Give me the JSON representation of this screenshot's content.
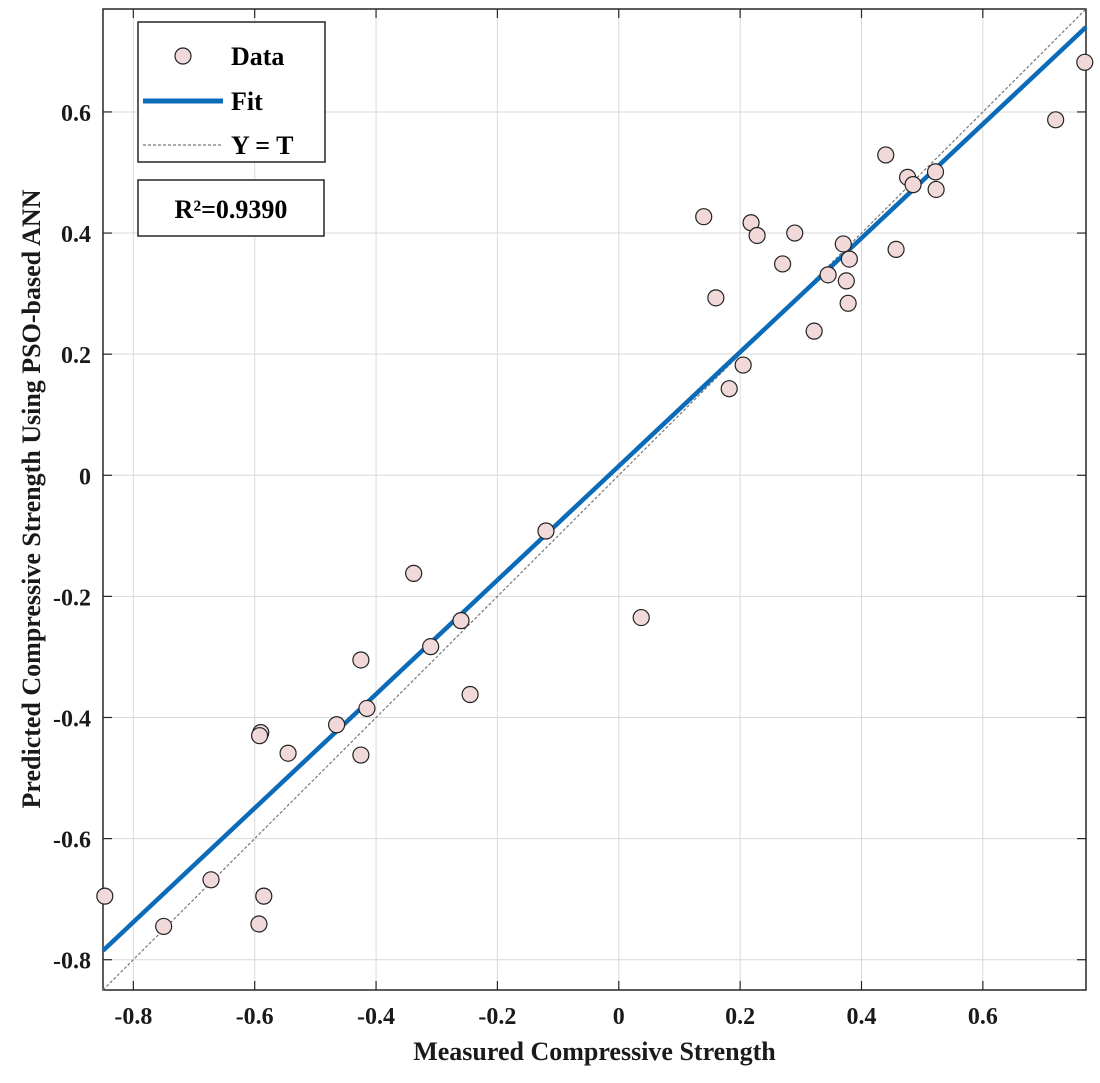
{
  "chart_data": {
    "type": "scatter",
    "title": "",
    "xlabel": "Measured Compressive Strength",
    "ylabel": "Predicted Compressive Strength Using PSO-based ANN",
    "xlim": [
      -0.85,
      0.77
    ],
    "ylim": [
      -0.85,
      0.77
    ],
    "xticks": [
      -0.8,
      -0.6,
      -0.4,
      -0.2,
      0,
      0.2,
      0.4,
      0.6
    ],
    "yticks": [
      -0.8,
      -0.6,
      -0.4,
      -0.2,
      0,
      0.2,
      0.4,
      0.6
    ],
    "xtick_labels": [
      "-0.8",
      "-0.6",
      "-0.4",
      "-0.2",
      "0",
      "0.2",
      "0.4",
      "0.6"
    ],
    "ytick_labels": [
      "-0.8",
      "-0.6",
      "-0.4",
      "-0.2",
      "0",
      "0.2",
      "0.4",
      "0.6"
    ],
    "grid": true,
    "legend": {
      "position": "top-left",
      "entries": [
        "Data",
        "Fit",
        "Y = T"
      ]
    },
    "annotation": "R²=0.9390",
    "series": [
      {
        "name": "Data",
        "kind": "scatter",
        "marker_color": "#f2d9d9",
        "points": [
          {
            "x": -0.847,
            "y": -0.695
          },
          {
            "x": -0.75,
            "y": -0.745
          },
          {
            "x": -0.672,
            "y": -0.668
          },
          {
            "x": -0.593,
            "y": -0.741
          },
          {
            "x": -0.585,
            "y": -0.695
          },
          {
            "x": -0.59,
            "y": -0.425
          },
          {
            "x": -0.592,
            "y": -0.43
          },
          {
            "x": -0.545,
            "y": -0.459
          },
          {
            "x": -0.465,
            "y": -0.412
          },
          {
            "x": -0.425,
            "y": -0.305
          },
          {
            "x": -0.425,
            "y": -0.462
          },
          {
            "x": -0.415,
            "y": -0.385
          },
          {
            "x": -0.338,
            "y": -0.162
          },
          {
            "x": -0.31,
            "y": -0.283
          },
          {
            "x": -0.26,
            "y": -0.24
          },
          {
            "x": -0.245,
            "y": -0.362
          },
          {
            "x": -0.12,
            "y": -0.092
          },
          {
            "x": 0.037,
            "y": -0.235
          },
          {
            "x": 0.14,
            "y": 0.427
          },
          {
            "x": 0.16,
            "y": 0.293
          },
          {
            "x": 0.182,
            "y": 0.143
          },
          {
            "x": 0.205,
            "y": 0.182
          },
          {
            "x": 0.218,
            "y": 0.417
          },
          {
            "x": 0.228,
            "y": 0.396
          },
          {
            "x": 0.27,
            "y": 0.349
          },
          {
            "x": 0.29,
            "y": 0.4
          },
          {
            "x": 0.322,
            "y": 0.238
          },
          {
            "x": 0.345,
            "y": 0.331
          },
          {
            "x": 0.37,
            "y": 0.382
          },
          {
            "x": 0.375,
            "y": 0.321
          },
          {
            "x": 0.378,
            "y": 0.284
          },
          {
            "x": 0.38,
            "y": 0.357
          },
          {
            "x": 0.44,
            "y": 0.529
          },
          {
            "x": 0.457,
            "y": 0.373
          },
          {
            "x": 0.476,
            "y": 0.492
          },
          {
            "x": 0.485,
            "y": 0.48
          },
          {
            "x": 0.522,
            "y": 0.501
          },
          {
            "x": 0.523,
            "y": 0.472
          },
          {
            "x": 0.72,
            "y": 0.587
          },
          {
            "x": 0.768,
            "y": 0.682
          }
        ]
      },
      {
        "name": "Fit",
        "kind": "line",
        "color": "#0b6bb8",
        "x": [
          -0.85,
          0.77
        ],
        "y": [
          -0.785,
          0.74
        ]
      },
      {
        "name": "Y = T",
        "kind": "line",
        "color": "#777777",
        "x": [
          -0.85,
          0.77
        ],
        "y": [
          -0.85,
          0.77
        ]
      }
    ]
  }
}
